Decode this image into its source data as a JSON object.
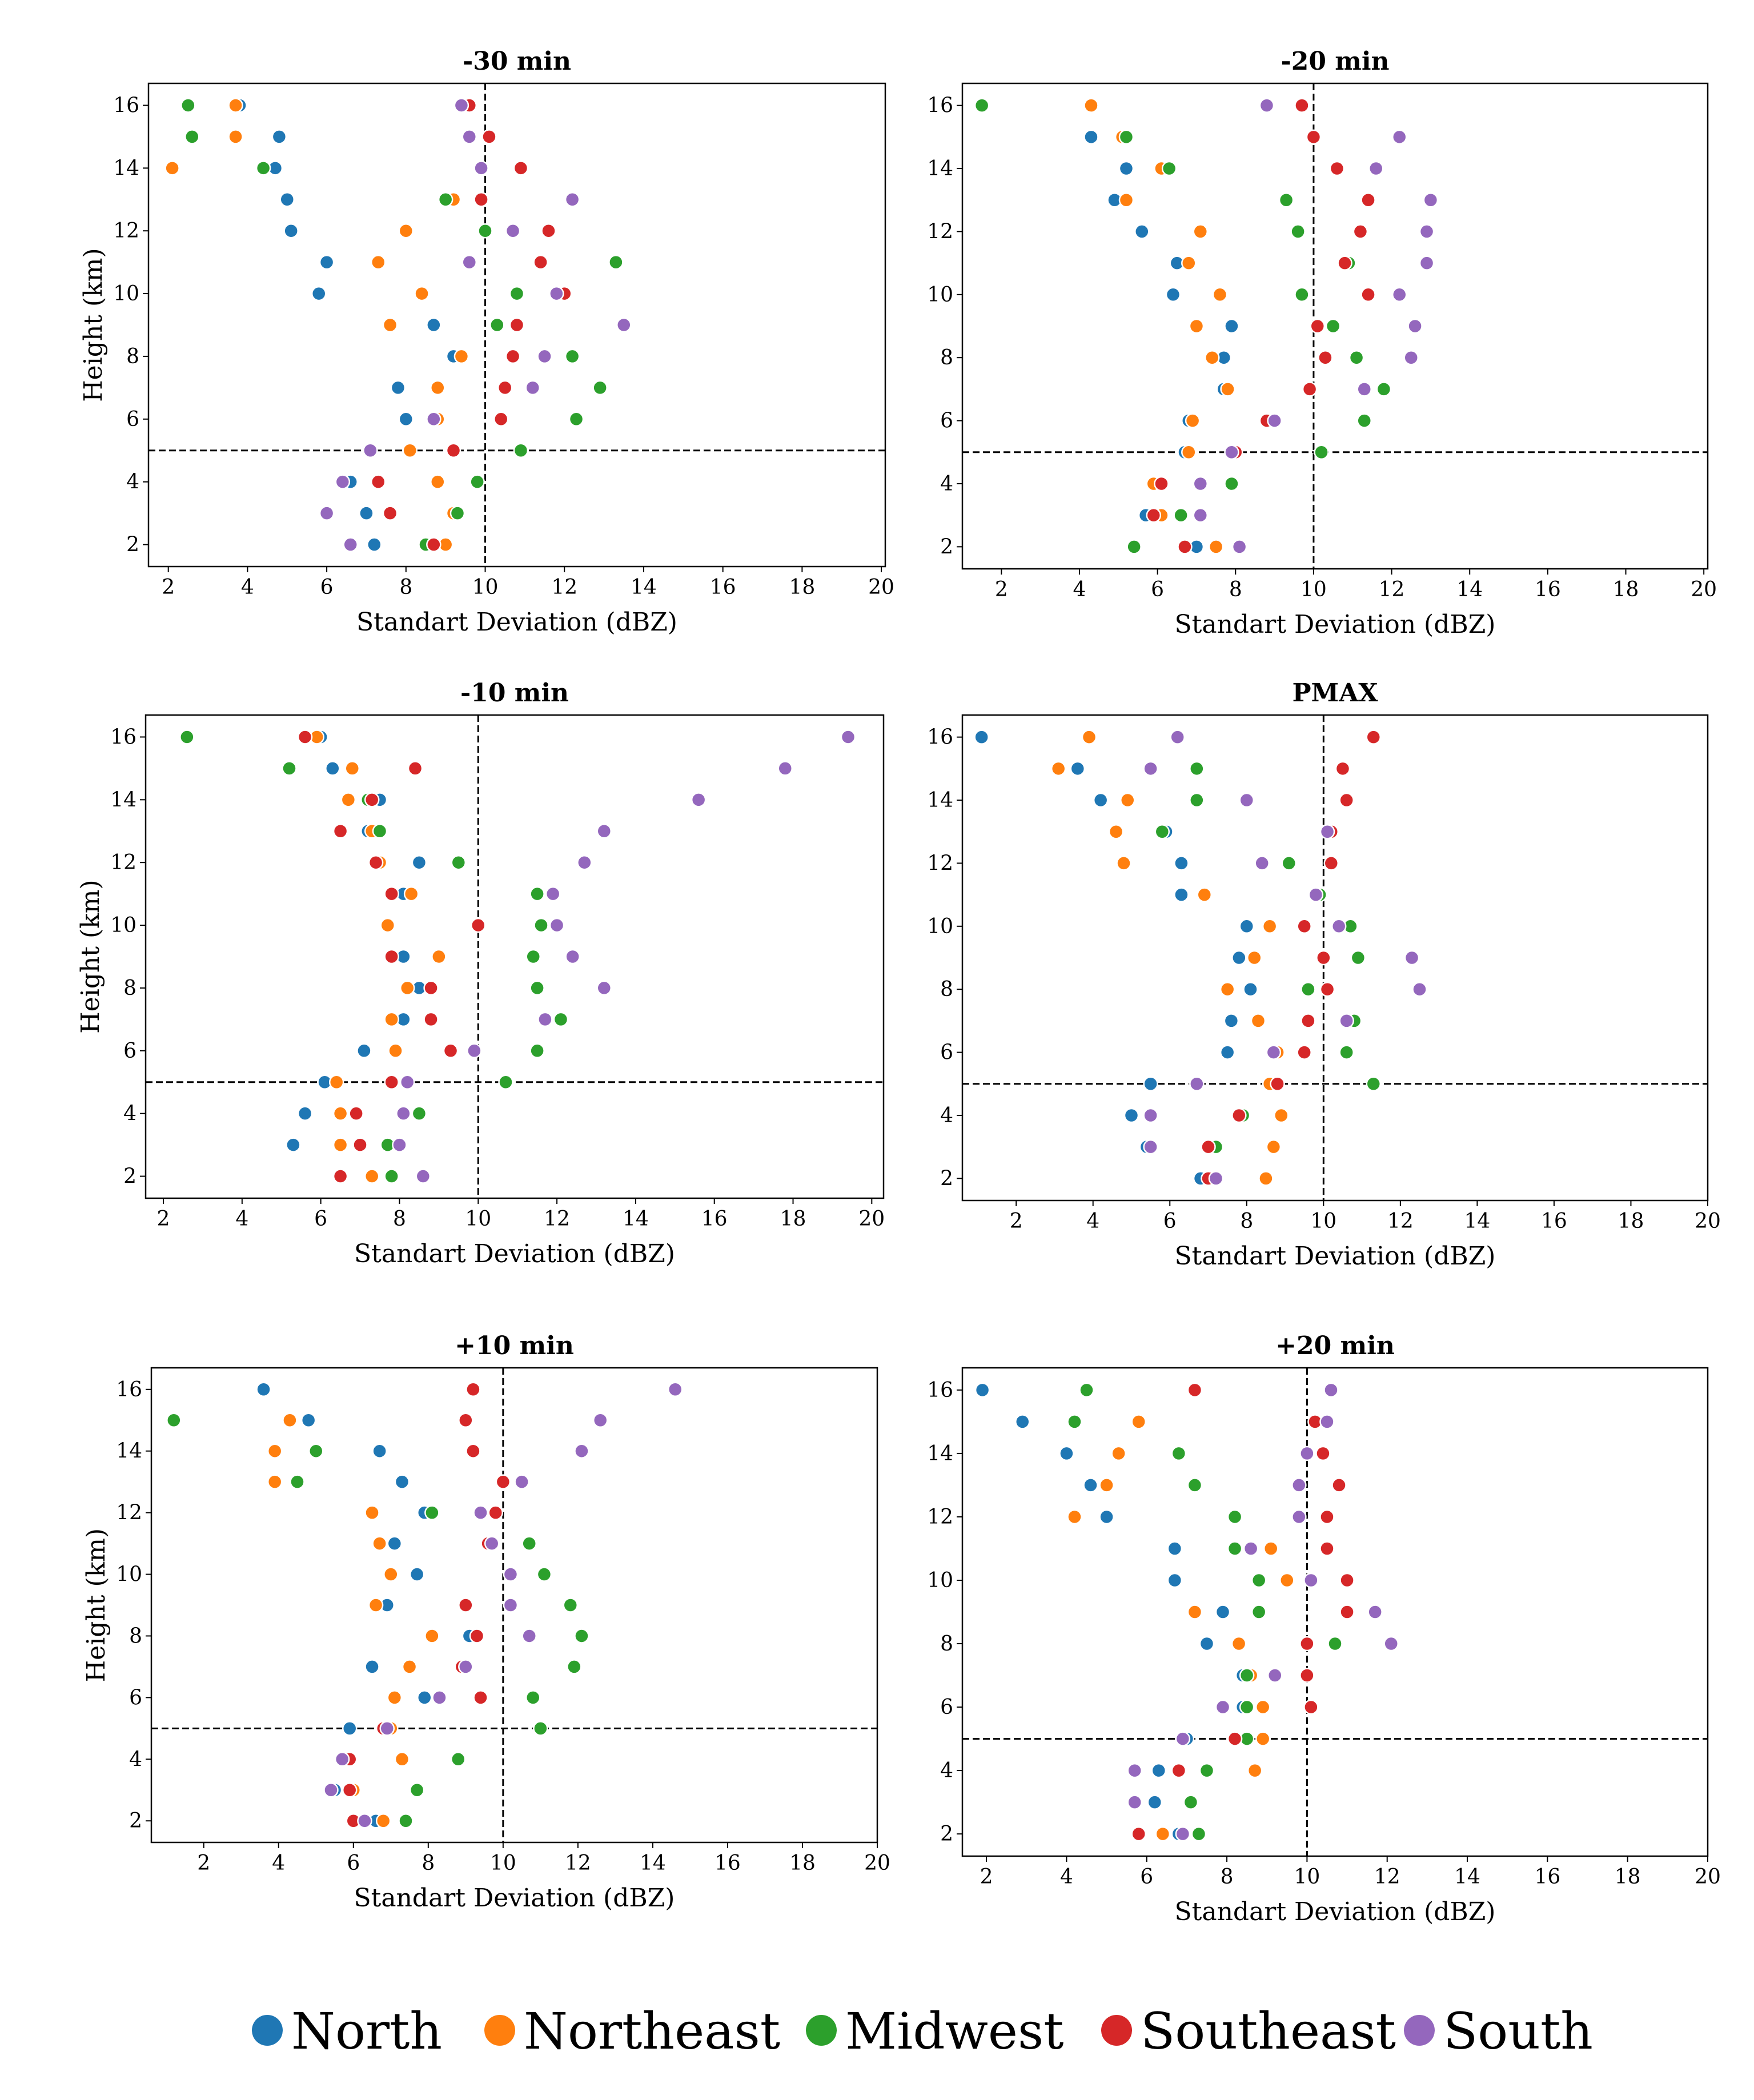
{
  "chart_data": {
    "type": "scatter",
    "legend": {
      "placement": "bottom-center",
      "entries": [
        "North",
        "Northeast",
        "Midwest",
        "Southeast",
        "South"
      ],
      "colors": [
        "#1f77b4",
        "#ff7f0e",
        "#2ca02c",
        "#d62728",
        "#9467bd"
      ]
    },
    "y_levels": [
      16,
      15,
      14,
      13,
      12,
      11,
      10,
      9,
      8,
      7,
      6,
      5,
      4,
      3,
      2
    ],
    "panels": [
      {
        "title": "-30 min",
        "xlabel": "Standart Deviation (dBZ)",
        "ylabel": "Height (km)",
        "xlim": [
          1.5,
          20.1
        ],
        "ylim": [
          1.3,
          16.7
        ],
        "vline": 10,
        "hline": 5,
        "xticks": [
          "2",
          "4",
          "6",
          "8",
          "10",
          "12",
          "14",
          "16",
          "18",
          "20"
        ],
        "yticks": [
          "2",
          "4",
          "6",
          "8",
          "10",
          "12",
          "14",
          "16"
        ],
        "series": {
          "North": [
            3.8,
            4.8,
            4.7,
            5.0,
            5.1,
            6.0,
            5.8,
            8.7,
            9.2,
            7.8,
            8.0,
            7.1,
            6.6,
            7.0,
            7.2
          ],
          "Northeast": [
            3.7,
            3.7,
            2.1,
            9.2,
            8.0,
            7.3,
            8.4,
            7.6,
            9.4,
            8.8,
            8.8,
            8.1,
            8.8,
            9.2,
            9.0
          ],
          "Midwest": [
            2.5,
            2.6,
            4.4,
            9.0,
            10.0,
            13.3,
            10.8,
            10.3,
            12.2,
            12.9,
            12.3,
            10.9,
            9.8,
            9.3,
            8.5
          ],
          "Southeast": [
            9.6,
            10.1,
            10.9,
            9.9,
            11.6,
            11.4,
            12.0,
            10.8,
            10.7,
            10.5,
            10.4,
            9.2,
            7.3,
            7.6,
            8.7
          ],
          "South": [
            9.4,
            9.6,
            9.9,
            12.2,
            10.7,
            9.6,
            11.8,
            13.5,
            11.5,
            11.2,
            8.7,
            7.1,
            6.4,
            6.0,
            6.6
          ]
        }
      },
      {
        "title": "-20 min",
        "xlabel": "Standart Deviation (dBZ)",
        "ylabel": "",
        "xlim": [
          1.0,
          20.1
        ],
        "ylim": [
          1.3,
          16.7
        ],
        "vline": 10,
        "hline": 5,
        "xticks": [
          "2",
          "4",
          "6",
          "8",
          "10",
          "12",
          "14",
          "16",
          "18",
          "20"
        ],
        "yticks": [
          "2",
          "4",
          "6",
          "8",
          "10",
          "12",
          "14",
          "16"
        ],
        "series": {
          "North": [
            4.3,
            4.3,
            5.2,
            4.9,
            5.6,
            6.5,
            6.4,
            7.9,
            7.7,
            7.7,
            6.8,
            6.7,
            5.9,
            5.7,
            7.0
          ],
          "Northeast": [
            4.3,
            5.1,
            6.1,
            5.2,
            7.1,
            6.8,
            7.6,
            7.0,
            7.4,
            7.8,
            6.9,
            6.8,
            5.9,
            6.1,
            7.5
          ],
          "Midwest": [
            1.5,
            5.2,
            6.3,
            9.3,
            9.6,
            10.9,
            9.7,
            10.5,
            11.1,
            11.8,
            11.3,
            10.2,
            7.9,
            6.6,
            5.4
          ],
          "Southeast": [
            9.7,
            10.0,
            10.6,
            11.4,
            11.2,
            10.8,
            11.4,
            10.1,
            10.3,
            9.9,
            8.8,
            8.0,
            6.1,
            5.9,
            6.7
          ],
          "South": [
            8.8,
            12.2,
            11.6,
            13.0,
            12.9,
            12.9,
            12.2,
            12.6,
            12.5,
            11.3,
            9.0,
            7.9,
            7.1,
            7.1,
            8.1
          ]
        }
      },
      {
        "title": "-10 min",
        "xlabel": "Standart Deviation (dBZ)",
        "ylabel": "Height (km)",
        "xlim": [
          1.55,
          20.3
        ],
        "ylim": [
          1.3,
          16.7
        ],
        "vline": 10,
        "hline": 5,
        "xticks": [
          "2",
          "4",
          "6",
          "8",
          "10",
          "12",
          "14",
          "16",
          "18",
          "20"
        ],
        "yticks": [
          "2",
          "4",
          "6",
          "8",
          "10",
          "12",
          "14",
          "16"
        ],
        "series": {
          "North": [
            6.0,
            6.3,
            7.5,
            7.2,
            8.5,
            8.1,
            10.0,
            8.1,
            8.5,
            8.1,
            7.1,
            6.1,
            5.6,
            5.3,
            6.5
          ],
          "Northeast": [
            5.9,
            6.8,
            6.7,
            7.3,
            7.5,
            8.3,
            7.7,
            9.0,
            8.2,
            7.8,
            7.9,
            6.4,
            6.5,
            6.5,
            7.3
          ],
          "Midwest": [
            2.6,
            5.2,
            7.2,
            7.5,
            9.5,
            11.5,
            11.6,
            11.4,
            11.5,
            12.1,
            11.5,
            10.7,
            8.5,
            7.7,
            7.8
          ],
          "Southeast": [
            5.6,
            8.4,
            7.3,
            6.5,
            7.4,
            7.8,
            10.0,
            7.8,
            8.8,
            8.8,
            9.3,
            7.8,
            6.9,
            7.0,
            6.5
          ],
          "South": [
            19.4,
            17.8,
            15.6,
            13.2,
            12.7,
            11.9,
            12.0,
            12.4,
            13.2,
            11.7,
            9.9,
            8.2,
            8.1,
            8.0,
            8.6
          ]
        }
      },
      {
        "title": "PMAX",
        "xlabel": "Standart Deviation (dBZ)",
        "ylabel": "",
        "xlim": [
          0.6,
          20.0
        ],
        "ylim": [
          1.3,
          16.7
        ],
        "vline": 10,
        "hline": 5,
        "xticks": [
          "2",
          "4",
          "6",
          "8",
          "10",
          "12",
          "14",
          "16",
          "18",
          "20"
        ],
        "yticks": [
          "2",
          "4",
          "6",
          "8",
          "10",
          "12",
          "14",
          "16"
        ],
        "series": {
          "North": [
            1.1,
            3.6,
            4.2,
            5.9,
            6.3,
            6.3,
            8.0,
            7.8,
            8.1,
            7.6,
            7.5,
            5.5,
            5.0,
            5.4,
            6.8
          ],
          "Northeast": [
            3.9,
            3.1,
            4.9,
            4.6,
            4.8,
            6.9,
            8.6,
            8.2,
            7.5,
            8.3,
            8.8,
            8.6,
            8.9,
            8.7,
            8.5
          ],
          "Midwest": [
            null,
            6.7,
            6.7,
            5.8,
            9.1,
            9.9,
            10.7,
            10.9,
            9.6,
            10.8,
            10.6,
            11.3,
            7.9,
            7.2,
            7.0
          ],
          "Southeast": [
            11.3,
            10.5,
            10.6,
            10.2,
            10.2,
            null,
            9.5,
            10.0,
            10.1,
            9.6,
            9.5,
            8.8,
            7.8,
            7.0,
            7.0
          ],
          "South": [
            6.2,
            5.5,
            8.0,
            10.1,
            8.4,
            9.8,
            10.4,
            12.3,
            12.5,
            10.6,
            8.7,
            6.7,
            5.5,
            5.5,
            7.2
          ]
        }
      },
      {
        "title": "+10 min",
        "xlabel": "Standart Deviation (dBZ)",
        "ylabel": "Height (km)",
        "xlim": [
          0.6,
          20.0
        ],
        "ylim": [
          1.3,
          16.7
        ],
        "vline": 10,
        "hline": 5,
        "xticks": [
          "2",
          "4",
          "6",
          "8",
          "10",
          "12",
          "14",
          "16",
          "18",
          "20"
        ],
        "yticks": [
          "2",
          "4",
          "6",
          "8",
          "10",
          "12",
          "14",
          "16"
        ],
        "series": {
          "North": [
            3.6,
            4.8,
            6.7,
            7.3,
            7.9,
            7.1,
            7.7,
            6.9,
            9.1,
            6.5,
            7.9,
            5.9,
            null,
            5.5,
            6.6
          ],
          "Northeast": [
            null,
            4.3,
            3.9,
            3.9,
            6.5,
            6.7,
            7.0,
            6.6,
            8.1,
            7.5,
            7.1,
            7.0,
            7.3,
            6.0,
            6.8
          ],
          "Midwest": [
            null,
            1.2,
            5.0,
            4.5,
            8.1,
            10.7,
            11.1,
            11.8,
            12.1,
            11.9,
            10.8,
            11.0,
            8.8,
            7.7,
            7.4
          ],
          "Southeast": [
            9.2,
            9.0,
            9.2,
            10.0,
            9.8,
            9.6,
            null,
            9.0,
            9.3,
            8.9,
            9.4,
            6.8,
            5.9,
            5.9,
            6.0
          ],
          "South": [
            14.6,
            12.6,
            12.1,
            10.5,
            9.4,
            9.7,
            10.2,
            10.2,
            10.7,
            9.0,
            8.3,
            6.9,
            5.7,
            5.4,
            6.3
          ]
        }
      },
      {
        "title": "+20 min",
        "xlabel": "Standart Deviation (dBZ)",
        "ylabel": "",
        "xlim": [
          1.4,
          20.0
        ],
        "ylim": [
          1.3,
          16.7
        ],
        "vline": 10,
        "hline": 5,
        "xticks": [
          "2",
          "4",
          "6",
          "8",
          "10",
          "12",
          "14",
          "16",
          "18",
          "20"
        ],
        "yticks": [
          "2",
          "4",
          "6",
          "8",
          "10",
          "12",
          "14",
          "16"
        ],
        "series": {
          "North": [
            1.9,
            2.9,
            4.0,
            4.6,
            5.0,
            6.7,
            6.7,
            7.9,
            7.5,
            8.4,
            8.4,
            7.0,
            6.3,
            6.2,
            6.8
          ],
          "Northeast": [
            null,
            5.8,
            5.3,
            5.0,
            4.2,
            9.1,
            9.5,
            7.2,
            8.3,
            8.6,
            8.9,
            8.9,
            8.7,
            null,
            6.4
          ],
          "Midwest": [
            4.5,
            4.2,
            6.8,
            7.2,
            8.2,
            8.2,
            8.8,
            8.8,
            10.7,
            8.5,
            8.5,
            8.5,
            7.5,
            7.1,
            7.3
          ],
          "Southeast": [
            7.2,
            10.2,
            10.4,
            10.8,
            10.5,
            10.5,
            11.0,
            11.0,
            10.0,
            10.0,
            10.1,
            8.2,
            6.8,
            null,
            5.8
          ],
          "South": [
            10.6,
            10.5,
            10.0,
            9.8,
            9.8,
            8.6,
            10.1,
            11.7,
            12.1,
            9.2,
            7.9,
            6.9,
            5.7,
            5.7,
            6.9
          ]
        }
      }
    ]
  }
}
